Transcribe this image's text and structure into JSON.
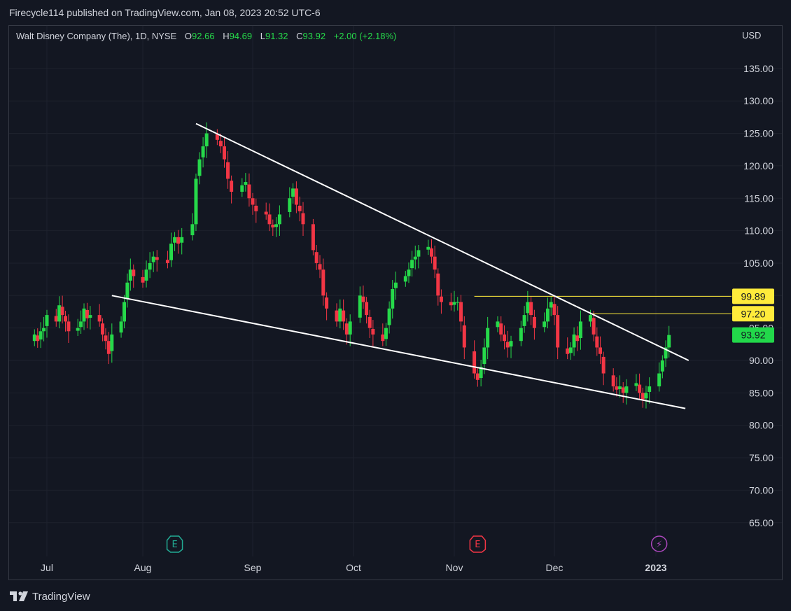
{
  "header": {
    "publish_text": "Firecycle114 published on TradingView.com, Jan 08, 2023 20:52 UTC-6"
  },
  "legend": {
    "symbol": "Walt Disney Company (The), 1D, NYSE",
    "o_label": "O",
    "o_value": "92.66",
    "h_label": "H",
    "h_value": "94.69",
    "l_label": "L",
    "l_value": "91.32",
    "c_label": "C",
    "c_value": "93.92",
    "change": "+2.00 (+2.18%)"
  },
  "currency": "USD",
  "footer": {
    "brand": "TradingView"
  },
  "colors": {
    "background": "#131722",
    "up": "#22ab94",
    "up_bright": "#26d94a",
    "down": "#f23645",
    "grid": "#1e222d",
    "trendline": "#ffffff",
    "level_line": "#ffeb3b",
    "price_tag": "#22d84a"
  },
  "chart_data": {
    "type": "candlestick",
    "y_axis_ticks": [
      "135.00",
      "130.00",
      "125.00",
      "120.00",
      "115.00",
      "110.00",
      "105.00",
      "100.00",
      "95.00",
      "90.00",
      "85.00",
      "80.00",
      "75.00",
      "70.00",
      "65.00"
    ],
    "ylim": [
      62,
      140
    ],
    "x_axis_labels": [
      {
        "label": "Jul",
        "date": "2022-07-01"
      },
      {
        "label": "Aug",
        "date": "2022-08-01"
      },
      {
        "label": "Sep",
        "date": "2022-09-01"
      },
      {
        "label": "Oct",
        "date": "2022-10-01"
      },
      {
        "label": "Nov",
        "date": "2022-11-01"
      },
      {
        "label": "Dec",
        "date": "2022-12-01"
      },
      {
        "label": "2023",
        "date": "2023-01-01",
        "bold": true
      }
    ],
    "price_levels": [
      {
        "value": 99.89,
        "label": "99.89",
        "from_date": "2022-11-07"
      },
      {
        "value": 97.2,
        "label": "97.20",
        "from_date": "2022-12-12"
      }
    ],
    "last_price": {
      "value": 93.92,
      "label": "93.92"
    },
    "trendlines": [
      {
        "name": "upper",
        "from": {
          "date": "2022-08-16",
          "price": 126.5
        },
        "to": {
          "date": "2023-01-11",
          "price": 90.0
        }
      },
      {
        "name": "lower",
        "from": {
          "date": "2022-07-22",
          "price": 100.0
        },
        "to": {
          "date": "2023-01-10",
          "price": 82.6
        }
      }
    ],
    "event_markers": [
      {
        "type": "earnings",
        "glyph": "E",
        "date": "2022-08-10",
        "color": "#22ab94"
      },
      {
        "type": "earnings",
        "glyph": "E",
        "date": "2022-11-08",
        "color": "#f23645"
      },
      {
        "type": "dividend",
        "glyph": "⚡",
        "date": "2023-01-02",
        "color": "#ab47bc"
      }
    ],
    "closes": [
      94,
      93,
      94.5,
      95,
      97,
      96,
      98.5,
      97,
      96,
      94.5,
      95,
      96,
      98,
      96.5,
      97,
      96,
      94,
      93,
      91,
      94,
      96,
      99,
      102,
      104,
      103,
      102,
      104,
      105,
      106,
      105.5,
      105,
      108,
      109,
      108,
      109,
      111,
      118,
      121,
      123,
      125,
      124,
      123,
      121,
      118,
      116,
      117,
      117.5,
      115,
      114,
      113,
      112.5,
      111,
      110.5,
      111,
      112.5,
      115,
      116.5,
      114,
      113,
      111,
      107,
      105,
      104,
      100,
      98,
      96,
      98,
      96,
      94,
      96,
      100,
      99,
      97,
      95,
      94,
      93,
      95,
      98,
      101,
      102,
      103,
      104,
      105.5,
      106,
      107,
      107.5,
      106,
      104,
      100,
      99,
      98.5,
      99,
      99,
      96,
      92,
      88,
      87,
      89,
      92,
      95,
      96,
      94,
      93,
      92,
      93,
      95,
      97,
      99,
      97,
      95,
      96,
      98,
      99,
      97,
      92,
      91,
      92,
      94,
      93,
      96,
      97,
      94,
      92,
      91,
      88,
      86,
      85.5,
      86,
      85,
      86,
      86.5,
      85,
      84,
      85,
      86,
      88,
      90,
      92,
      93.92
    ]
  }
}
